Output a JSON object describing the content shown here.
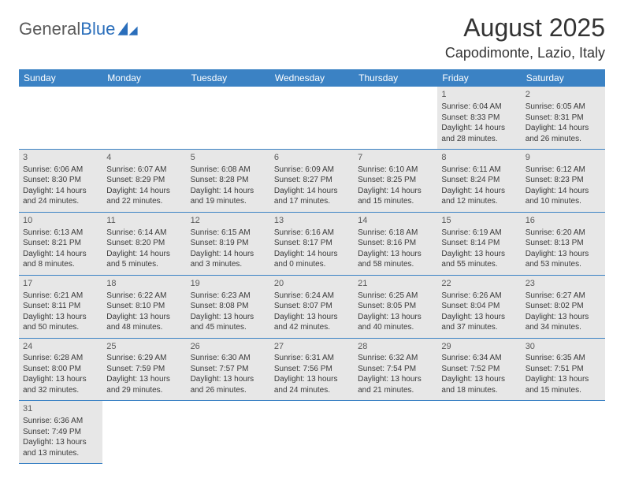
{
  "logo": {
    "text1": "General",
    "text2": "Blue"
  },
  "title": "August 2025",
  "location": "Capodimonte, Lazio, Italy",
  "colors": {
    "header_bg": "#3b82c4",
    "header_text": "#ffffff",
    "daynum_row_bg": "#e7e7e7",
    "cell_border": "#3b82c4",
    "text": "#333333",
    "logo_gray": "#5a5a5a",
    "logo_blue": "#2a6ebb"
  },
  "weekdays": [
    "Sunday",
    "Monday",
    "Tuesday",
    "Wednesday",
    "Thursday",
    "Friday",
    "Saturday"
  ],
  "days": [
    {
      "n": 1,
      "sr": "6:04 AM",
      "ss": "8:33 PM",
      "dl": "14 hours and 28 minutes."
    },
    {
      "n": 2,
      "sr": "6:05 AM",
      "ss": "8:31 PM",
      "dl": "14 hours and 26 minutes."
    },
    {
      "n": 3,
      "sr": "6:06 AM",
      "ss": "8:30 PM",
      "dl": "14 hours and 24 minutes."
    },
    {
      "n": 4,
      "sr": "6:07 AM",
      "ss": "8:29 PM",
      "dl": "14 hours and 22 minutes."
    },
    {
      "n": 5,
      "sr": "6:08 AM",
      "ss": "8:28 PM",
      "dl": "14 hours and 19 minutes."
    },
    {
      "n": 6,
      "sr": "6:09 AM",
      "ss": "8:27 PM",
      "dl": "14 hours and 17 minutes."
    },
    {
      "n": 7,
      "sr": "6:10 AM",
      "ss": "8:25 PM",
      "dl": "14 hours and 15 minutes."
    },
    {
      "n": 8,
      "sr": "6:11 AM",
      "ss": "8:24 PM",
      "dl": "14 hours and 12 minutes."
    },
    {
      "n": 9,
      "sr": "6:12 AM",
      "ss": "8:23 PM",
      "dl": "14 hours and 10 minutes."
    },
    {
      "n": 10,
      "sr": "6:13 AM",
      "ss": "8:21 PM",
      "dl": "14 hours and 8 minutes."
    },
    {
      "n": 11,
      "sr": "6:14 AM",
      "ss": "8:20 PM",
      "dl": "14 hours and 5 minutes."
    },
    {
      "n": 12,
      "sr": "6:15 AM",
      "ss": "8:19 PM",
      "dl": "14 hours and 3 minutes."
    },
    {
      "n": 13,
      "sr": "6:16 AM",
      "ss": "8:17 PM",
      "dl": "14 hours and 0 minutes."
    },
    {
      "n": 14,
      "sr": "6:18 AM",
      "ss": "8:16 PM",
      "dl": "13 hours and 58 minutes."
    },
    {
      "n": 15,
      "sr": "6:19 AM",
      "ss": "8:14 PM",
      "dl": "13 hours and 55 minutes."
    },
    {
      "n": 16,
      "sr": "6:20 AM",
      "ss": "8:13 PM",
      "dl": "13 hours and 53 minutes."
    },
    {
      "n": 17,
      "sr": "6:21 AM",
      "ss": "8:11 PM",
      "dl": "13 hours and 50 minutes."
    },
    {
      "n": 18,
      "sr": "6:22 AM",
      "ss": "8:10 PM",
      "dl": "13 hours and 48 minutes."
    },
    {
      "n": 19,
      "sr": "6:23 AM",
      "ss": "8:08 PM",
      "dl": "13 hours and 45 minutes."
    },
    {
      "n": 20,
      "sr": "6:24 AM",
      "ss": "8:07 PM",
      "dl": "13 hours and 42 minutes."
    },
    {
      "n": 21,
      "sr": "6:25 AM",
      "ss": "8:05 PM",
      "dl": "13 hours and 40 minutes."
    },
    {
      "n": 22,
      "sr": "6:26 AM",
      "ss": "8:04 PM",
      "dl": "13 hours and 37 minutes."
    },
    {
      "n": 23,
      "sr": "6:27 AM",
      "ss": "8:02 PM",
      "dl": "13 hours and 34 minutes."
    },
    {
      "n": 24,
      "sr": "6:28 AM",
      "ss": "8:00 PM",
      "dl": "13 hours and 32 minutes."
    },
    {
      "n": 25,
      "sr": "6:29 AM",
      "ss": "7:59 PM",
      "dl": "13 hours and 29 minutes."
    },
    {
      "n": 26,
      "sr": "6:30 AM",
      "ss": "7:57 PM",
      "dl": "13 hours and 26 minutes."
    },
    {
      "n": 27,
      "sr": "6:31 AM",
      "ss": "7:56 PM",
      "dl": "13 hours and 24 minutes."
    },
    {
      "n": 28,
      "sr": "6:32 AM",
      "ss": "7:54 PM",
      "dl": "13 hours and 21 minutes."
    },
    {
      "n": 29,
      "sr": "6:34 AM",
      "ss": "7:52 PM",
      "dl": "13 hours and 18 minutes."
    },
    {
      "n": 30,
      "sr": "6:35 AM",
      "ss": "7:51 PM",
      "dl": "13 hours and 15 minutes."
    },
    {
      "n": 31,
      "sr": "6:36 AM",
      "ss": "7:49 PM",
      "dl": "13 hours and 13 minutes."
    }
  ],
  "layout": {
    "first_day_column": 5,
    "rows": 6,
    "labels": {
      "sunrise": "Sunrise:",
      "sunset": "Sunset:",
      "daylight": "Daylight:"
    }
  }
}
